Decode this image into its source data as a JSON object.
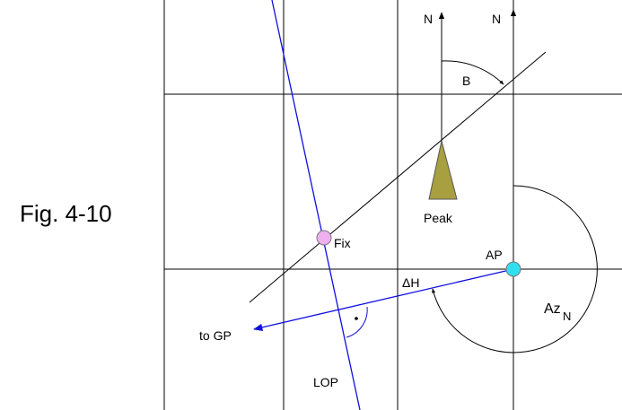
{
  "figure_label": "Fig. 4-10",
  "labels": {
    "north_1": "N",
    "north_2": "N",
    "bearing": "B",
    "peak": "Peak",
    "fix": "Fix",
    "ap": "AP",
    "delta_h": "ΔH",
    "to_gp": "to GP",
    "azimuth": "Az",
    "azimuth_sub": "N",
    "lop": "LOP"
  }
}
